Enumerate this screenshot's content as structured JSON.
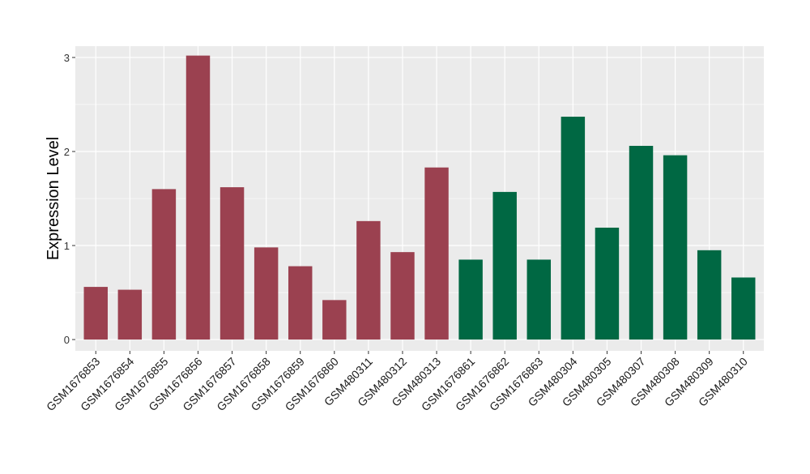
{
  "chart_data": {
    "type": "bar",
    "ylabel": "Expression Level",
    "xlabel": "",
    "ylim": [
      -0.12,
      3.12
    ],
    "yticks": [
      0,
      1,
      2,
      3
    ],
    "grid": true,
    "categories": [
      "GSM1676853",
      "GSM1676854",
      "GSM1676855",
      "GSM1676856",
      "GSM1676857",
      "GSM1676858",
      "GSM1676859",
      "GSM1676860",
      "GSM480311",
      "GSM480312",
      "GSM480313",
      "GSM1676861",
      "GSM1676862",
      "GSM1676863",
      "GSM480304",
      "GSM480305",
      "GSM480307",
      "GSM480308",
      "GSM480309",
      "GSM480310"
    ],
    "values": [
      0.56,
      0.53,
      1.6,
      3.02,
      1.62,
      0.98,
      0.78,
      0.42,
      1.26,
      0.93,
      1.83,
      0.85,
      1.57,
      0.85,
      2.37,
      1.19,
      2.06,
      1.96,
      0.95,
      0.66
    ],
    "groups": [
      0,
      0,
      0,
      0,
      0,
      0,
      0,
      0,
      0,
      0,
      0,
      1,
      1,
      1,
      1,
      1,
      1,
      1,
      1,
      1
    ],
    "group_colors": [
      "#9b4150",
      "#006843"
    ],
    "panel_background": "#ebebeb",
    "grid_color": "#ffffff"
  }
}
